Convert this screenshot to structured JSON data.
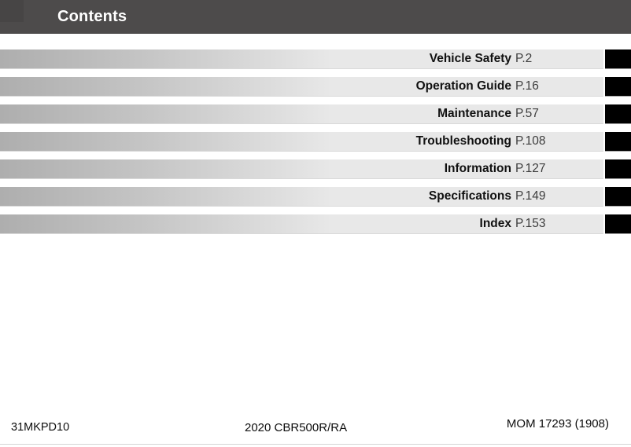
{
  "header": {
    "title": "Contents",
    "bg_color": "#4d4b4b",
    "text_color": "#ffffff"
  },
  "toc": {
    "items": [
      {
        "label": "Vehicle Safety",
        "page": "P.2"
      },
      {
        "label": "Operation Guide",
        "page": "P.16"
      },
      {
        "label": "Maintenance",
        "page": "P.57"
      },
      {
        "label": "Troubleshooting",
        "page": "P.108"
      },
      {
        "label": "Information",
        "page": "P.127"
      },
      {
        "label": "Specifications",
        "page": "P.149"
      },
      {
        "label": "Index",
        "page": "P.153"
      }
    ],
    "bar_gradient_start": "#aeaeae",
    "bar_gradient_end": "#e8e8e8",
    "tab_color": "#000000",
    "title_color": "#111111",
    "page_ref_color": "#3d3d3d"
  },
  "footer": {
    "left": "31MKPD10",
    "center": "2020 CBR500R/RA",
    "right": "MOM 17293 (1908)"
  }
}
